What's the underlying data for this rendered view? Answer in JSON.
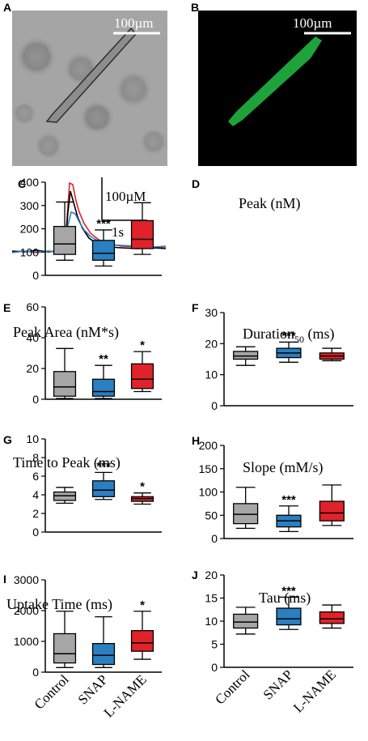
{
  "panels": {
    "A": {
      "label": "A",
      "scale": "100µm"
    },
    "B": {
      "label": "B",
      "scale": "100µm"
    },
    "C": {
      "label": "C",
      "scale_y": "100µM",
      "scale_x": "1s"
    }
  },
  "colors": {
    "control": "#a6a6a6",
    "snap": "#2a7fc1",
    "lname": "#e0232b",
    "trace_black": "#000000",
    "cell_green": "#1ea33a"
  },
  "chart_data": [
    {
      "panel": "D",
      "type": "boxplot",
      "title": "Peak (nM)",
      "ylim": [
        0,
        400
      ],
      "yticks": [
        0,
        100,
        200,
        300,
        400
      ],
      "categories": [
        "Control",
        "SNAP",
        "L-NAME"
      ],
      "boxes": [
        {
          "min": 65,
          "q1": 90,
          "median": 135,
          "q3": 210,
          "max": 315,
          "sig": ""
        },
        {
          "min": 40,
          "q1": 65,
          "median": 95,
          "q3": 150,
          "max": 195,
          "sig": "***"
        },
        {
          "min": 90,
          "q1": 115,
          "median": 155,
          "q3": 235,
          "max": 312,
          "sig": ""
        }
      ]
    },
    {
      "panel": "E",
      "type": "boxplot",
      "title": "Peak Area (nM*s)",
      "ylim": [
        0,
        60
      ],
      "yticks": [
        0,
        20,
        40,
        60
      ],
      "categories": [
        "Control",
        "SNAP",
        "L-NAME"
      ],
      "boxes": [
        {
          "min": 0.5,
          "q1": 2,
          "median": 8,
          "q3": 18,
          "max": 33,
          "sig": ""
        },
        {
          "min": 0.5,
          "q1": 2,
          "median": 5,
          "q3": 13,
          "max": 22,
          "sig": "**"
        },
        {
          "min": 5,
          "q1": 7,
          "median": 13,
          "q3": 23,
          "max": 31,
          "sig": "*"
        }
      ]
    },
    {
      "panel": "F",
      "type": "boxplot",
      "title": "Duration",
      "title_sub": "50",
      "title_unit": " (ms)",
      "ylim": [
        0,
        30
      ],
      "yticks": [
        0,
        10,
        20,
        30
      ],
      "categories": [
        "Control",
        "SNAP",
        "L-NAME"
      ],
      "boxes": [
        {
          "min": 13,
          "q1": 15,
          "median": 16,
          "q3": 17.5,
          "max": 19,
          "sig": ""
        },
        {
          "min": 14,
          "q1": 15.5,
          "median": 17,
          "q3": 18.5,
          "max": 20.5,
          "sig": "***"
        },
        {
          "min": 14.5,
          "q1": 15,
          "median": 16,
          "q3": 17,
          "max": 18.5,
          "sig": ""
        }
      ]
    },
    {
      "panel": "G",
      "type": "boxplot",
      "title": "Time to Peak (ms)",
      "ylim": [
        0,
        10
      ],
      "yticks": [
        0,
        2,
        4,
        6,
        8,
        10
      ],
      "categories": [
        "Control",
        "SNAP",
        "L-NAME"
      ],
      "boxes": [
        {
          "min": 3.1,
          "q1": 3.4,
          "median": 3.9,
          "q3": 4.3,
          "max": 4.8,
          "sig": ""
        },
        {
          "min": 3.5,
          "q1": 3.8,
          "median": 4.5,
          "q3": 5.5,
          "max": 6.4,
          "sig": "***"
        },
        {
          "min": 3.0,
          "q1": 3.3,
          "median": 3.6,
          "q3": 3.8,
          "max": 4.2,
          "sig": "*"
        }
      ]
    },
    {
      "panel": "H",
      "type": "boxplot",
      "title": "Slope (mM/s)",
      "ylim": [
        0,
        200
      ],
      "yticks": [
        0,
        50,
        100,
        150,
        200
      ],
      "categories": [
        "Control",
        "SNAP",
        "L-NAME"
      ],
      "boxes": [
        {
          "min": 22,
          "q1": 32,
          "median": 52,
          "q3": 75,
          "max": 110,
          "sig": ""
        },
        {
          "min": 15,
          "q1": 25,
          "median": 38,
          "q3": 50,
          "max": 70,
          "sig": "***"
        },
        {
          "min": 28,
          "q1": 38,
          "median": 55,
          "q3": 80,
          "max": 115,
          "sig": ""
        }
      ]
    },
    {
      "panel": "I",
      "type": "boxplot",
      "title": "Uptake Time (ms)",
      "ylim": [
        0,
        3000
      ],
      "yticks": [
        0,
        1000,
        2000,
        3000
      ],
      "categories": [
        "Control",
        "SNAP",
        "L-NAME"
      ],
      "boxes": [
        {
          "min": 150,
          "q1": 300,
          "median": 600,
          "q3": 1250,
          "max": 1980,
          "sig": ""
        },
        {
          "min": 150,
          "q1": 250,
          "median": 550,
          "q3": 930,
          "max": 1800,
          "sig": ""
        },
        {
          "min": 420,
          "q1": 680,
          "median": 950,
          "q3": 1350,
          "max": 1980,
          "sig": "*"
        }
      ]
    },
    {
      "panel": "J",
      "type": "boxplot",
      "title": "Tau (ms)",
      "ylim": [
        0,
        20
      ],
      "yticks": [
        0,
        5,
        10,
        15,
        20
      ],
      "categories": [
        "Control",
        "SNAP",
        "L-NAME"
      ],
      "boxes": [
        {
          "min": 7.2,
          "q1": 8.5,
          "median": 9.8,
          "q3": 11.5,
          "max": 13.0,
          "sig": ""
        },
        {
          "min": 8.2,
          "q1": 9.2,
          "median": 10.5,
          "q3": 12.8,
          "max": 15.2,
          "sig": "***"
        },
        {
          "min": 8.5,
          "q1": 9.5,
          "median": 10.5,
          "q3": 12.0,
          "max": 13.5,
          "sig": ""
        }
      ]
    }
  ]
}
